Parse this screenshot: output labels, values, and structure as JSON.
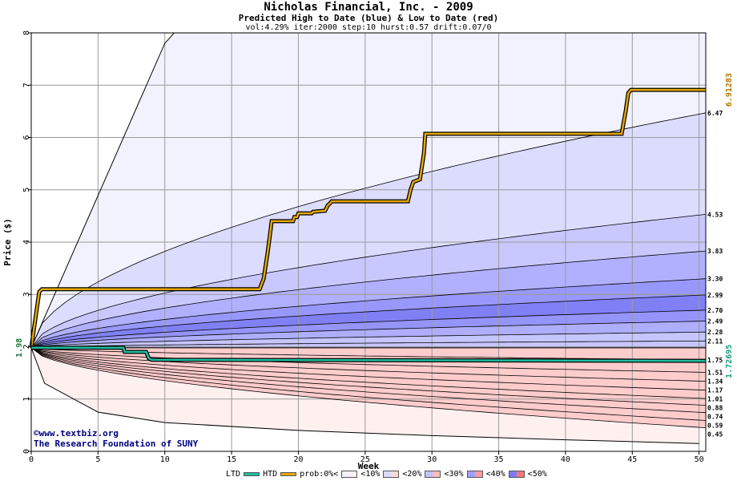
{
  "header": {
    "title": "Nicholas Financial, Inc. - 2009",
    "subtitle": "Predicted High to Date (blue) &  Low to Date (red)",
    "params": "vol:4.29% iter:2000 step:10 hurst:0.57 drift:0.07/0"
  },
  "credit": {
    "line1": "©www.textbiz.org",
    "line2": "The Research Foundation of SUNY"
  },
  "legend": {
    "ltd": "LTD",
    "htd": "HTD",
    "prob": "prob:0%<",
    "b10": "<10%",
    "b20": "<20%",
    "b30": "<30%",
    "b40": "<40%",
    "b50": "<50%"
  },
  "colors": {
    "ltd": "#1fbf9f",
    "htd": "#e6a800",
    "right_high_label": "#b07800",
    "right_low_label": "#1a9c7c",
    "left_start_label": "#1a7a3a"
  },
  "chart_data": {
    "type": "area",
    "xlabel": "Week",
    "ylabel": "Price ($)",
    "xlim": [
      0,
      50.5
    ],
    "ylim": [
      0,
      8
    ],
    "x_ticks": [
      0,
      5,
      10,
      15,
      20,
      25,
      30,
      35,
      40,
      45,
      50
    ],
    "y_ticks": [
      0,
      1,
      2,
      3,
      4,
      5,
      6,
      7,
      8
    ],
    "start_price": 1.98,
    "start_label": "1.98",
    "htd_final_label": "6.91283",
    "ltd_final_label": "1.72695",
    "high_quantiles": [
      {
        "label": "6.47",
        "end": 6.47
      },
      {
        "label": "4.53",
        "end": 4.53
      },
      {
        "label": "3.83",
        "end": 3.83
      },
      {
        "label": "3.30",
        "end": 3.3
      },
      {
        "label": "2.99",
        "end": 2.99
      },
      {
        "label": "2.70",
        "end": 2.7
      },
      {
        "label": "2.49",
        "end": 2.49
      },
      {
        "label": "2.28",
        "end": 2.28
      },
      {
        "label": "2.11",
        "end": 2.11
      }
    ],
    "low_quantiles": [
      {
        "label": "1.75",
        "end": 1.75
      },
      {
        "label": "1.51",
        "end": 1.51
      },
      {
        "label": "1.34",
        "end": 1.34
      },
      {
        "label": "1.17",
        "end": 1.17
      },
      {
        "label": "1.01",
        "end": 1.01
      },
      {
        "label": "0.88",
        "end": 0.88
      },
      {
        "label": "0.74",
        "end": 0.74
      },
      {
        "label": "0.59",
        "end": 0.59
      },
      {
        "label": "0.45",
        "end": 0.45
      }
    ],
    "outer_high": {
      "x": [
        0,
        10,
        10.7
      ],
      "y": [
        1.98,
        7.8,
        8.0
      ]
    },
    "outer_low": {
      "x": [
        0,
        1,
        5,
        10,
        20,
        30,
        40,
        50
      ],
      "y": [
        1.98,
        1.3,
        0.75,
        0.55,
        0.4,
        0.3,
        0.22,
        0.15
      ]
    },
    "htd_series": {
      "name": "HTD",
      "x": [
        0,
        0.6,
        0.8,
        17.1,
        17.4,
        17.7,
        17.9,
        18.0,
        19.6,
        19.7,
        19.9,
        20.0,
        21.0,
        21.1,
        22.0,
        22.2,
        22.4,
        22.5,
        28.2,
        28.4,
        28.6,
        29.1,
        29.4,
        29.5,
        44.2,
        44.5,
        44.7,
        44.9,
        50.5
      ],
      "y": [
        1.98,
        3.05,
        3.1,
        3.1,
        3.3,
        3.8,
        4.2,
        4.4,
        4.4,
        4.48,
        4.48,
        4.55,
        4.55,
        4.58,
        4.6,
        4.7,
        4.75,
        4.78,
        4.78,
        5.0,
        5.15,
        5.2,
        5.7,
        6.07,
        6.07,
        6.5,
        6.85,
        6.91,
        6.91
      ]
    },
    "ltd_series": {
      "name": "LTD",
      "x": [
        0,
        6.9,
        7.0,
        8.6,
        8.8,
        9.0,
        50.5
      ],
      "y": [
        1.98,
        1.98,
        1.9,
        1.9,
        1.78,
        1.75,
        1.73
      ]
    },
    "grid": true
  }
}
